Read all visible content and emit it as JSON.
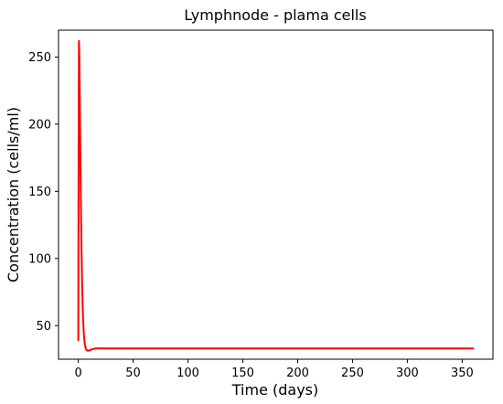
{
  "chart_data": {
    "type": "line",
    "title": "Lymphnode - plama cells",
    "xlabel": "Time (days)",
    "ylabel": "Concentration (cells/ml)",
    "xlim": [
      -18,
      378
    ],
    "ylim": [
      25,
      270
    ],
    "xticks": [
      0,
      50,
      100,
      150,
      200,
      250,
      300,
      350
    ],
    "yticks": [
      50,
      100,
      150,
      200,
      250
    ],
    "grid": false,
    "series": [
      {
        "color": "#ff0000",
        "x": [
          0,
          0.3,
          0.6,
          1,
          1.5,
          2,
          2.5,
          3,
          3.5,
          4,
          4.5,
          5,
          5.5,
          6,
          7,
          8,
          9,
          10,
          12,
          14,
          16,
          18,
          20,
          25,
          30,
          40,
          50,
          75,
          100,
          150,
          200,
          250,
          300,
          350,
          360
        ],
        "y": [
          39,
          180,
          262,
          250,
          210,
          170,
          135,
          105,
          82,
          65,
          53,
          45,
          39.5,
          36,
          32.5,
          31.5,
          31.3,
          31.5,
          32.2,
          32.7,
          33,
          33.1,
          33.1,
          33,
          33,
          33,
          33,
          33,
          33,
          33,
          33,
          33,
          33,
          33,
          33
        ]
      }
    ]
  }
}
